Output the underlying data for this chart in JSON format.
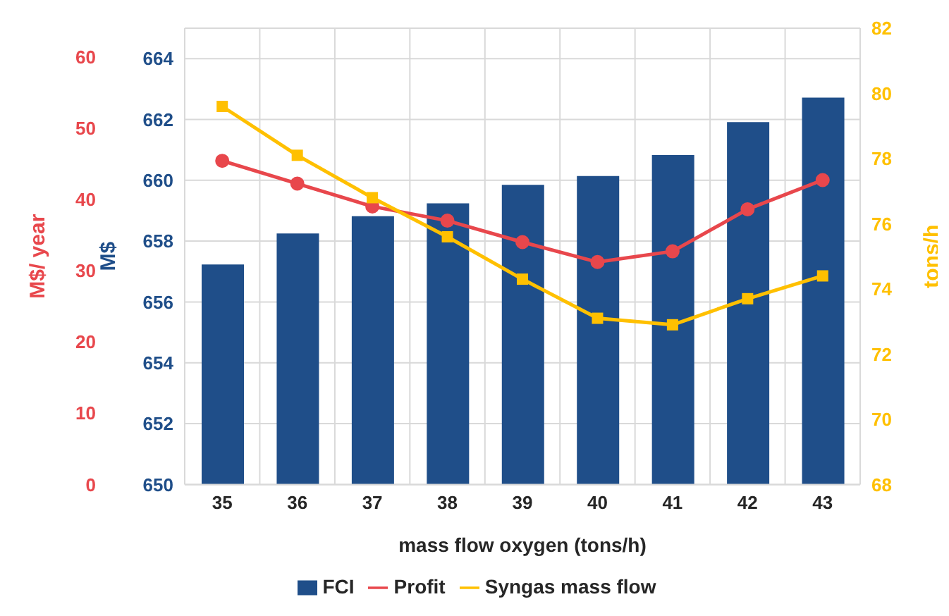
{
  "chart_data": {
    "type": "bar",
    "xlabel": "mass flow oxygen (tons/h)",
    "ylabel": "M$",
    "y2label": "tons/h",
    "y3label": "M$/ year",
    "categories": [
      "35",
      "36",
      "37",
      "38",
      "39",
      "40",
      "41",
      "42",
      "43"
    ],
    "series": [
      {
        "name": "FCI",
        "color": "#1f4e89",
        "values": [
          657.23,
          658.25,
          658.82,
          659.24,
          659.85,
          660.14,
          660.83,
          661.91,
          662.72
        ]
      },
      {
        "name": "Profit",
        "type": "line",
        "axis": "y3",
        "color": "#e8474c",
        "marker": "circle",
        "values": [
          45.4,
          42.2,
          39.0,
          37.0,
          34.0,
          31.2,
          32.7,
          38.6,
          42.7
        ]
      },
      {
        "name": "Syngas mass flow",
        "type": "line",
        "axis": "y2",
        "color": "#ffc000",
        "marker": "square",
        "values": [
          79.6,
          78.1,
          76.8,
          75.6,
          74.3,
          73.1,
          72.9,
          73.7,
          74.4
        ]
      }
    ],
    "ylim": [
      650,
      665
    ],
    "yticks": [
      650,
      652,
      654,
      656,
      658,
      660,
      662,
      664
    ],
    "y2lim": [
      68,
      82
    ],
    "y2ticks": [
      68,
      70,
      72,
      74,
      76,
      78,
      80,
      82
    ],
    "y3lim": [
      0,
      64
    ],
    "y3ticks": [
      0,
      10,
      20,
      30,
      40,
      50,
      60
    ],
    "grid": true,
    "legend": "bottom"
  }
}
